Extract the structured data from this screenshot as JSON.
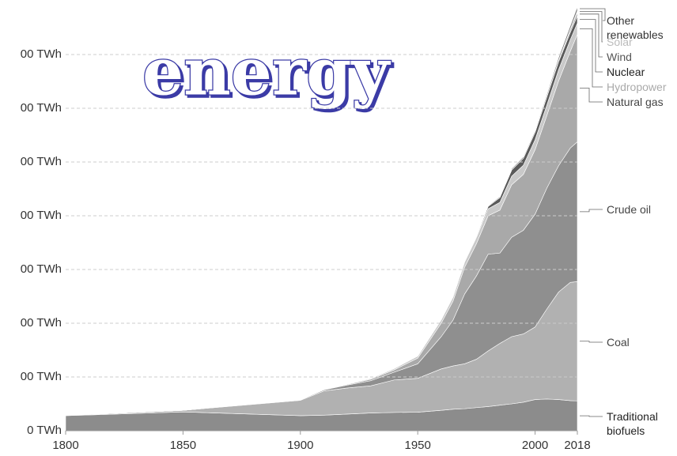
{
  "chart_data": {
    "type": "stacked-area",
    "title": "energy",
    "x": [
      1800,
      1850,
      1900,
      1910,
      1920,
      1930,
      1940,
      1950,
      1960,
      1965,
      1970,
      1975,
      1980,
      1985,
      1990,
      1995,
      2000,
      2005,
      2010,
      2015,
      2018
    ],
    "xlim": [
      1800,
      2018
    ],
    "xticks": [
      1800,
      1850,
      1900,
      1950,
      2000,
      2018
    ],
    "ylim": [
      0,
      160000
    ],
    "yticks": [
      {
        "value": 0,
        "label": "0 TWh"
      },
      {
        "value": 20000,
        "label": "00 TWh"
      },
      {
        "value": 40000,
        "label": "00 TWh"
      },
      {
        "value": 60000,
        "label": "00 TWh"
      },
      {
        "value": 80000,
        "label": "00 TWh"
      },
      {
        "value": 100000,
        "label": "00 TWh"
      },
      {
        "value": 120000,
        "label": "00 TWh"
      },
      {
        "value": 140000,
        "label": "00 TWh"
      }
    ],
    "grid": true,
    "series": [
      {
        "name": "Traditional biofuels",
        "color": "#8c8c8c",
        "values": [
          5600,
          7000,
          5600,
          5800,
          6200,
          6600,
          6800,
          6900,
          7600,
          8000,
          8200,
          8600,
          9000,
          9500,
          10000,
          10600,
          11600,
          11800,
          11600,
          11200,
          11100
        ]
      },
      {
        "name": "Coal",
        "color": "#b1b1b1",
        "values": [
          100,
          600,
          5700,
          9000,
          9700,
          10100,
          12100,
          12600,
          15400,
          16100,
          16700,
          18000,
          20700,
          23000,
          25000,
          25400,
          27000,
          33500,
          40000,
          44000,
          44400
        ]
      },
      {
        "name": "Crude oil",
        "color": "#8f8f8f",
        "values": [
          0,
          0,
          180,
          380,
          1100,
          1900,
          2900,
          5400,
          12000,
          17000,
          26000,
          31000,
          36000,
          33600,
          37000,
          38600,
          42000,
          45000,
          47000,
          50000,
          52000
        ]
      },
      {
        "name": "Natural gas",
        "color": "#a9a9a9",
        "values": [
          0,
          0,
          64,
          160,
          240,
          560,
          870,
          2100,
          5000,
          7100,
          10000,
          12000,
          14300,
          16000,
          19500,
          20800,
          24000,
          27000,
          31500,
          36000,
          40000
        ]
      },
      {
        "name": "Hydropower",
        "color": "#c9c9c9",
        "values": [
          0,
          0,
          0,
          50,
          150,
          300,
          500,
          800,
          1300,
          1500,
          1900,
          2300,
          2600,
          2900,
          3200,
          3400,
          3700,
          3900,
          4200,
          4300,
          4200
        ]
      },
      {
        "name": "Nuclear",
        "color": "#5a5a5a",
        "values": [
          0,
          0,
          0,
          0,
          0,
          0,
          0,
          0,
          5,
          40,
          120,
          500,
          900,
          1800,
          2300,
          2600,
          2800,
          3000,
          3000,
          2700,
          2700
        ]
      },
      {
        "name": "Wind",
        "color": "#9a9a9a",
        "values": [
          0,
          0,
          0,
          0,
          0,
          0,
          0,
          0,
          0,
          0,
          0,
          0,
          0,
          0,
          5,
          10,
          40,
          120,
          400,
          900,
          1300
        ]
      },
      {
        "name": "Solar",
        "color": "#d0d0d0",
        "values": [
          0,
          0,
          0,
          0,
          0,
          0,
          0,
          0,
          0,
          0,
          0,
          0,
          0,
          0,
          0,
          0,
          0,
          5,
          40,
          300,
          600
        ]
      },
      {
        "name": "Other renewables",
        "color": "#777777",
        "values": [
          0,
          0,
          0,
          0,
          0,
          0,
          0,
          20,
          60,
          80,
          100,
          150,
          250,
          350,
          450,
          500,
          600,
          800,
          1100,
          1300,
          1500
        ]
      }
    ]
  }
}
